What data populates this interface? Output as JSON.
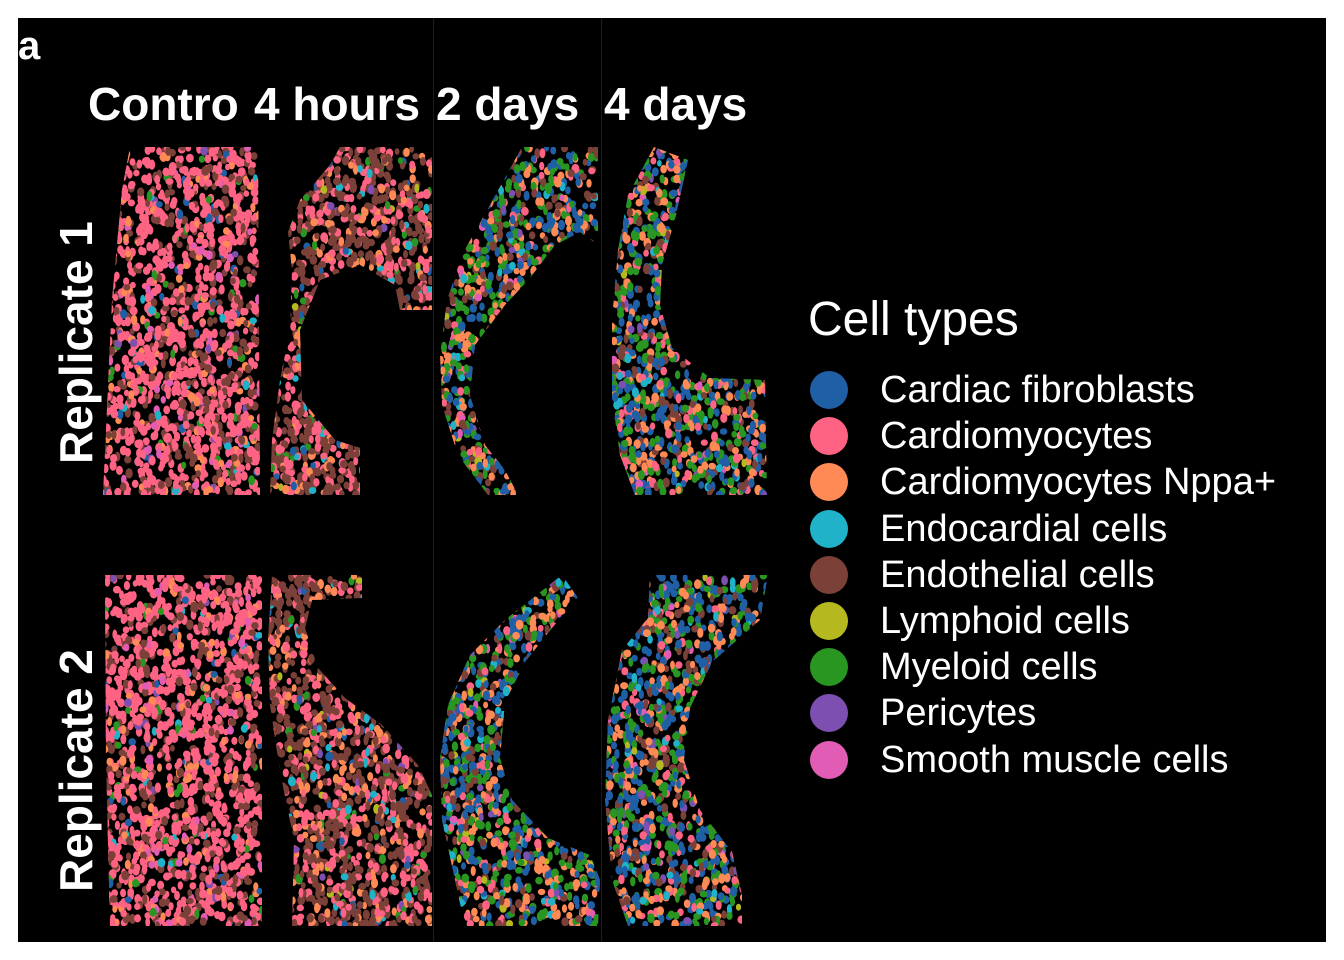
{
  "figure": {
    "panel_label": "a",
    "columns": [
      "Contro",
      "4 hours",
      "2 days",
      "4 days"
    ],
    "rows": [
      "Replicate 1",
      "Replicate 2"
    ]
  },
  "legend": {
    "title": "Cell types",
    "items": [
      {
        "label": "Cardiac fibroblasts",
        "color": "#1f5fa6"
      },
      {
        "label": "Cardiomyocytes",
        "color": "#ff6384"
      },
      {
        "label": "Cardiomyocytes Nppa+",
        "color": "#ff8a55"
      },
      {
        "label": "Endocardial cells",
        "color": "#1fb2c8"
      },
      {
        "label": "Endothelial cells",
        "color": "#7b4038"
      },
      {
        "label": "Lymphoid cells",
        "color": "#b5b81f"
      },
      {
        "label": "Myeloid cells",
        "color": "#2a9622"
      },
      {
        "label": "Pericytes",
        "color": "#7c4fb0"
      },
      {
        "label": "Smooth muscle cells",
        "color": "#e05cb5"
      }
    ]
  }
}
